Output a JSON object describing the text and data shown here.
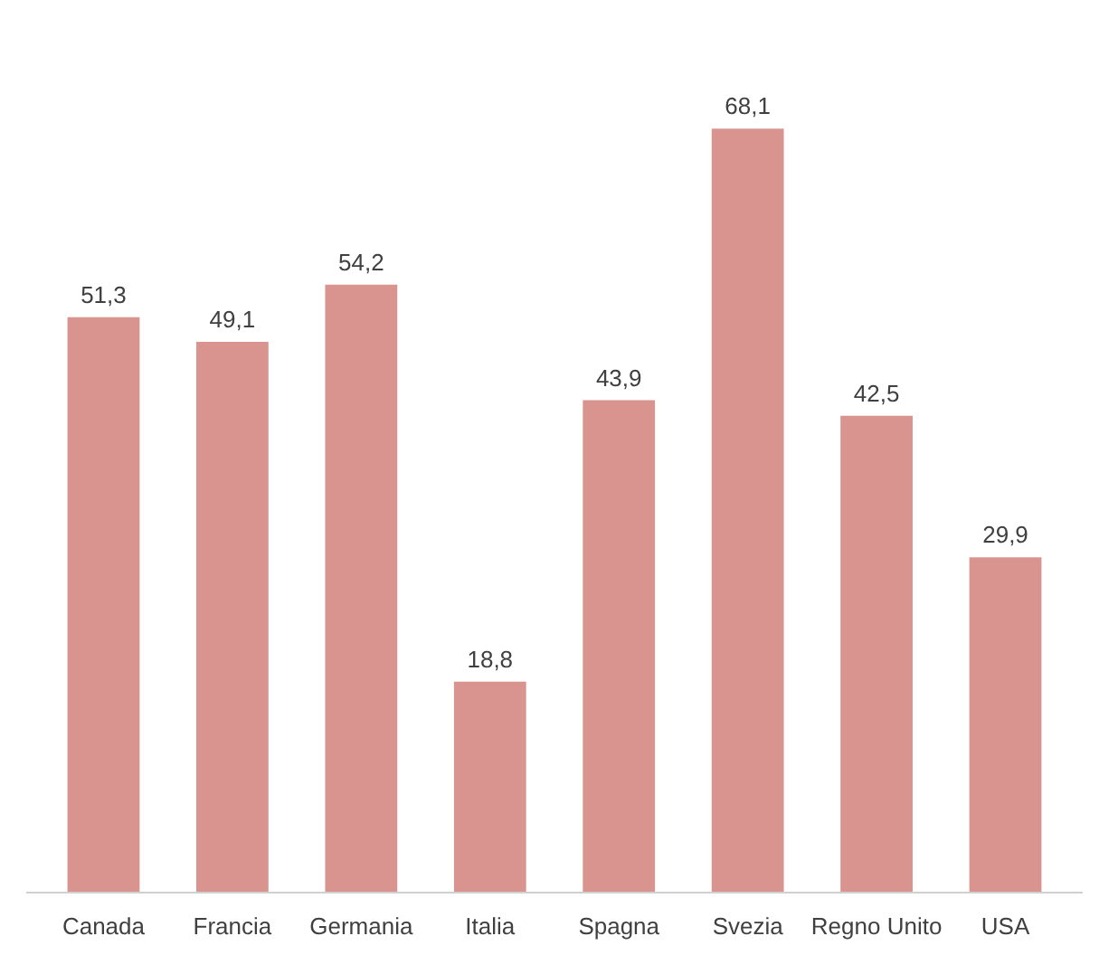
{
  "chart_data": {
    "type": "bar",
    "categories": [
      "Canada",
      "Francia",
      "Germania",
      "Italia",
      "Spagna",
      "Svezia",
      "Regno Unito",
      "USA"
    ],
    "values": [
      51.3,
      49.1,
      54.2,
      18.8,
      43.9,
      68.1,
      42.5,
      29.9
    ],
    "value_labels": [
      "51,3",
      "49,1",
      "54,2",
      "18,8",
      "43,9",
      "68,1",
      "42,5",
      "29,9"
    ],
    "color": "#d9948f",
    "grid": false,
    "tick_labels": "x"
  }
}
